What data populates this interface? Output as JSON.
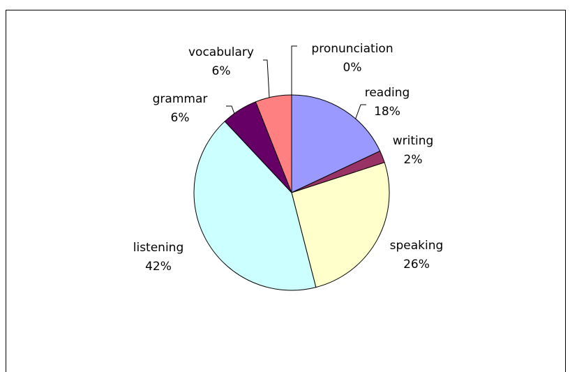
{
  "chart_data": {
    "type": "pie",
    "categories": [
      "reading",
      "writing",
      "speaking",
      "listening",
      "grammar",
      "vocabulary",
      "pronunciation"
    ],
    "values": [
      18,
      2,
      26,
      42,
      6,
      6,
      0
    ],
    "value_labels": [
      "18%",
      "2%",
      "26%",
      "42%",
      "6%",
      "6%",
      "0%"
    ],
    "colors": [
      "#9999ff",
      "#993366",
      "#ffffcc",
      "#ccffff",
      "#660066",
      "#ff8080",
      "#0066cc"
    ]
  }
}
